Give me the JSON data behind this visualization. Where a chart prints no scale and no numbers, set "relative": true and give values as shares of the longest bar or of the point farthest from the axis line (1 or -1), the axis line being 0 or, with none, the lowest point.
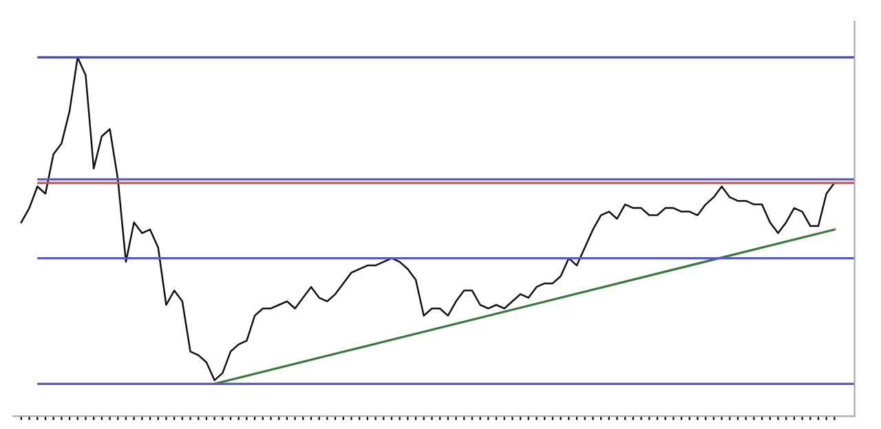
{
  "chart_data": {
    "type": "line",
    "relative": true,
    "grid": false,
    "legend": false,
    "marker": "none",
    "line_style": "solid",
    "categories": [
      null,
      null,
      null,
      null,
      null,
      null,
      null,
      null,
      null,
      null,
      null,
      null,
      null,
      null,
      null,
      null,
      null,
      null,
      null,
      null,
      null,
      null,
      null,
      null,
      null,
      null,
      null,
      null,
      null,
      null,
      null,
      null,
      null,
      null,
      null,
      null,
      null,
      null,
      null,
      null,
      null,
      null,
      null,
      null,
      null,
      null,
      null,
      null,
      null,
      null,
      null,
      null,
      null,
      null,
      null,
      null,
      null,
      null,
      null,
      null,
      null,
      null,
      null,
      null,
      null,
      null,
      null,
      null,
      null,
      null,
      null,
      null,
      null,
      null,
      null,
      null,
      null,
      null,
      null,
      null,
      null,
      null,
      null,
      null,
      null,
      null,
      null,
      null,
      null,
      null,
      null,
      null,
      null,
      null,
      null,
      null,
      null,
      null,
      null,
      null,
      null,
      null
    ],
    "series": [
      {
        "color": "#111111",
        "values": [
          0.54,
          0.58,
          0.64,
          0.62,
          0.73,
          0.76,
          0.85,
          1.0,
          0.95,
          0.69,
          0.78,
          0.8,
          0.66,
          0.43,
          0.54,
          0.51,
          0.52,
          0.47,
          0.31,
          0.35,
          0.32,
          0.18,
          0.17,
          0.15,
          0.1,
          0.12,
          0.18,
          0.2,
          0.21,
          0.28,
          0.3,
          0.3,
          0.31,
          0.32,
          0.3,
          0.33,
          0.36,
          0.33,
          0.32,
          0.34,
          0.37,
          0.4,
          0.41,
          0.42,
          0.42,
          0.43,
          0.44,
          0.43,
          0.41,
          0.38,
          0.28,
          0.3,
          0.3,
          0.28,
          0.32,
          0.35,
          0.35,
          0.31,
          0.3,
          0.31,
          0.3,
          0.32,
          0.34,
          0.33,
          0.36,
          0.37,
          0.37,
          0.39,
          0.44,
          0.42,
          0.47,
          0.52,
          0.56,
          0.57,
          0.55,
          0.59,
          0.58,
          0.58,
          0.56,
          0.56,
          0.58,
          0.58,
          0.57,
          0.57,
          0.56,
          0.59,
          0.61,
          0.64,
          0.61,
          0.6,
          0.6,
          0.59,
          0.59,
          0.54,
          0.51,
          0.54,
          0.58,
          0.57,
          0.53,
          0.53,
          0.62,
          0.65
        ]
      },
      {
        "color": "#3a7a3a",
        "values": [
          null,
          null,
          null,
          null,
          null,
          null,
          null,
          null,
          null,
          null,
          null,
          null,
          null,
          null,
          null,
          null,
          null,
          null,
          null,
          null,
          null,
          null,
          null,
          null,
          0.09,
          null,
          null,
          null,
          null,
          null,
          null,
          null,
          null,
          null,
          null,
          null,
          null,
          null,
          null,
          null,
          null,
          null,
          null,
          null,
          null,
          null,
          null,
          null,
          null,
          null,
          null,
          null,
          null,
          null,
          null,
          null,
          null,
          null,
          null,
          null,
          null,
          null,
          null,
          null,
          null,
          null,
          null,
          null,
          null,
          null,
          null,
          null,
          null,
          null,
          null,
          null,
          null,
          null,
          null,
          null,
          null,
          null,
          null,
          null,
          null,
          null,
          null,
          null,
          null,
          null,
          null,
          null,
          null,
          null,
          null,
          null,
          null,
          null,
          null,
          null,
          null,
          0.52
        ]
      }
    ],
    "ref_lines": [
      {
        "axis": "y",
        "value": 1.0,
        "color": "#4a4aa8"
      },
      {
        "axis": "y",
        "value": 0.66,
        "color": "#5a5ac8"
      },
      {
        "axis": "y",
        "value": 0.65,
        "color": "#d05050"
      },
      {
        "axis": "y",
        "value": 0.44,
        "color": "#5a5ac8"
      },
      {
        "axis": "y",
        "value": 0.09,
        "color": "#5a5ac8"
      }
    ]
  }
}
